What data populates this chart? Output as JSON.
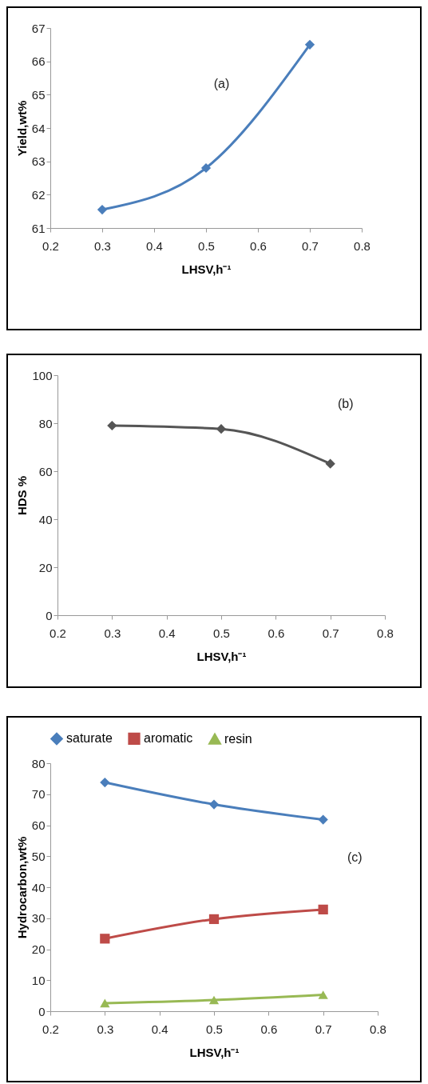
{
  "chart_data": [
    {
      "type": "line",
      "xlabel": "LHSV,h⁻¹",
      "ylabel": "Yield,wt%",
      "annotations": [
        "(a)"
      ],
      "x": [
        0.3,
        0.5,
        0.7
      ],
      "marker": "diamond",
      "xlim": [
        0.2,
        0.8
      ],
      "xticks": [
        0.2,
        0.3,
        0.4,
        0.5,
        0.6,
        0.7,
        0.8
      ],
      "ylim": [
        61,
        67
      ],
      "yticks": [
        61,
        62,
        63,
        64,
        65,
        66,
        67
      ],
      "series": [
        {
          "color": "#4a7ebb",
          "values": [
            61.55,
            62.8,
            66.5
          ]
        }
      ]
    },
    {
      "type": "line",
      "xlabel": "LHSV,h⁻¹",
      "ylabel": "HDS %",
      "annotations": [
        "(b)"
      ],
      "x": [
        0.3,
        0.5,
        0.7
      ],
      "marker": "diamond",
      "xlim": [
        0.2,
        0.8
      ],
      "xticks": [
        0.2,
        0.3,
        0.4,
        0.5,
        0.6,
        0.7,
        0.8
      ],
      "ylim": [
        0,
        100
      ],
      "yticks": [
        0,
        20,
        40,
        60,
        80,
        100
      ],
      "series": [
        {
          "color": "#555555",
          "values": [
            79.0,
            77.6,
            63.1
          ]
        }
      ]
    },
    {
      "type": "line",
      "xlabel": "LHSV,h⁻¹",
      "ylabel": "Hydrocarbon,wt%",
      "annotations": [
        "(c)"
      ],
      "x": [
        0.3,
        0.5,
        0.7
      ],
      "legend": "top",
      "xlim": [
        0.2,
        0.8
      ],
      "xticks": [
        0.2,
        0.3,
        0.4,
        0.5,
        0.6,
        0.7,
        0.8
      ],
      "ylim": [
        0,
        80
      ],
      "yticks": [
        0,
        10,
        20,
        30,
        40,
        50,
        60,
        70,
        80
      ],
      "series": [
        {
          "name": "saturate",
          "color": "#4a7ebb",
          "marker": "diamond",
          "values": [
            73.8,
            66.7,
            61.8
          ]
        },
        {
          "name": "aromatic",
          "color": "#be4b48",
          "marker": "square",
          "values": [
            23.4,
            29.7,
            32.8
          ]
        },
        {
          "name": "resin",
          "color": "#98b954",
          "marker": "triangle",
          "values": [
            2.6,
            3.6,
            5.3
          ]
        }
      ]
    }
  ]
}
